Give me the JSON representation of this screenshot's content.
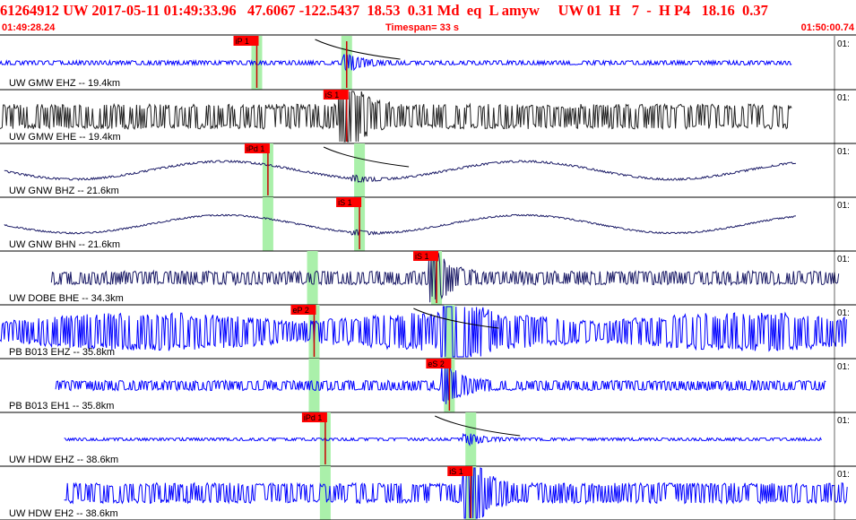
{
  "header": {
    "event_line": "61264912 UW 2017-05-11 01:49:33.96   47.6067 -122.5437  18.53  0.31 Md  eq  L amyw     UW 01  H   7  -  H P4   18.16  0.37",
    "start_time": "01:49:28.24",
    "timespan": "Timespan=  33 s",
    "end_time": "01:50:00.74"
  },
  "panel": {
    "tick_label": "01:"
  },
  "traces": [
    {
      "label": "UW GMW EHZ -- 19.4km",
      "color": "blue",
      "amp": 0.09,
      "start": 0.0,
      "end": 0.925,
      "green": [
        0.3,
        0.405
      ],
      "picks": [
        {
          "text": "iP 1",
          "pos": 0.3
        },
        {
          "text": "",
          "pos": 0.405
        }
      ],
      "coda": true,
      "burst": 0.41
    },
    {
      "label": "UW GMW EHE -- 19.4km",
      "color": "black",
      "amp": 0.55,
      "start": 0.0,
      "end": 0.925,
      "green": [],
      "picks": [
        {
          "text": "iS 1",
          "pos": 0.405
        }
      ],
      "coda": false,
      "burst": 0.405
    },
    {
      "label": "UW GNW BHZ -- 21.6km",
      "color": "navy",
      "amp": 0.04,
      "start": 0.005,
      "end": 0.93,
      "green": [
        0.313,
        0.42
      ],
      "picks": [
        {
          "text": "iPd 1",
          "pos": 0.313
        }
      ],
      "coda": true,
      "burst": 0.42,
      "sine": true
    },
    {
      "label": "UW GNW BHN -- 21.6km",
      "color": "navy",
      "amp": 0.03,
      "start": 0.005,
      "end": 0.93,
      "green": [
        0.313,
        0.42
      ],
      "picks": [
        {
          "text": "iS 1",
          "pos": 0.42
        }
      ],
      "coda": false,
      "burst": 0.42,
      "sine": true
    },
    {
      "label": "UW DOBE BHE -- 34.3km",
      "color": "navy",
      "amp": 0.3,
      "start": 0.06,
      "end": 0.98,
      "green": [
        0.365,
        0.51
      ],
      "picks": [
        {
          "text": "iS 1",
          "pos": 0.51
        }
      ],
      "coda": false,
      "burst": 0.51
    },
    {
      "label": "PB B013 EHZ -- 35.8km",
      "color": "blue",
      "amp": 0.45,
      "start": 0.0,
      "end": 0.99,
      "green": [
        0.367,
        0.525
      ],
      "picks": [
        {
          "text": "eP 2",
          "pos": 0.367
        }
      ],
      "coda": true,
      "burst": 0.525,
      "swell": true
    },
    {
      "label": "PB B013 EH1 -- 35.8km",
      "color": "blue",
      "amp": 0.22,
      "start": 0.065,
      "end": 0.965,
      "green": [
        0.367,
        0.525
      ],
      "picks": [
        {
          "text": "eS 2",
          "pos": 0.525
        }
      ],
      "coda": false,
      "burst": 0.525
    },
    {
      "label": "UW HDW EHZ -- 38.6km",
      "color": "blue",
      "amp": 0.06,
      "start": 0.075,
      "end": 0.96,
      "green": [
        0.38,
        0.55
      ],
      "picks": [
        {
          "text": "iPd 1",
          "pos": 0.38
        }
      ],
      "coda": true,
      "burst": 0.55
    },
    {
      "label": "UW HDW EH2 -- 38.6km",
      "color": "blue",
      "amp": 0.45,
      "start": 0.075,
      "end": 0.99,
      "green": [
        0.38,
        0.55
      ],
      "picks": [
        {
          "text": "iS 1",
          "pos": 0.55
        }
      ],
      "coda": false,
      "burst": 0.55
    }
  ]
}
